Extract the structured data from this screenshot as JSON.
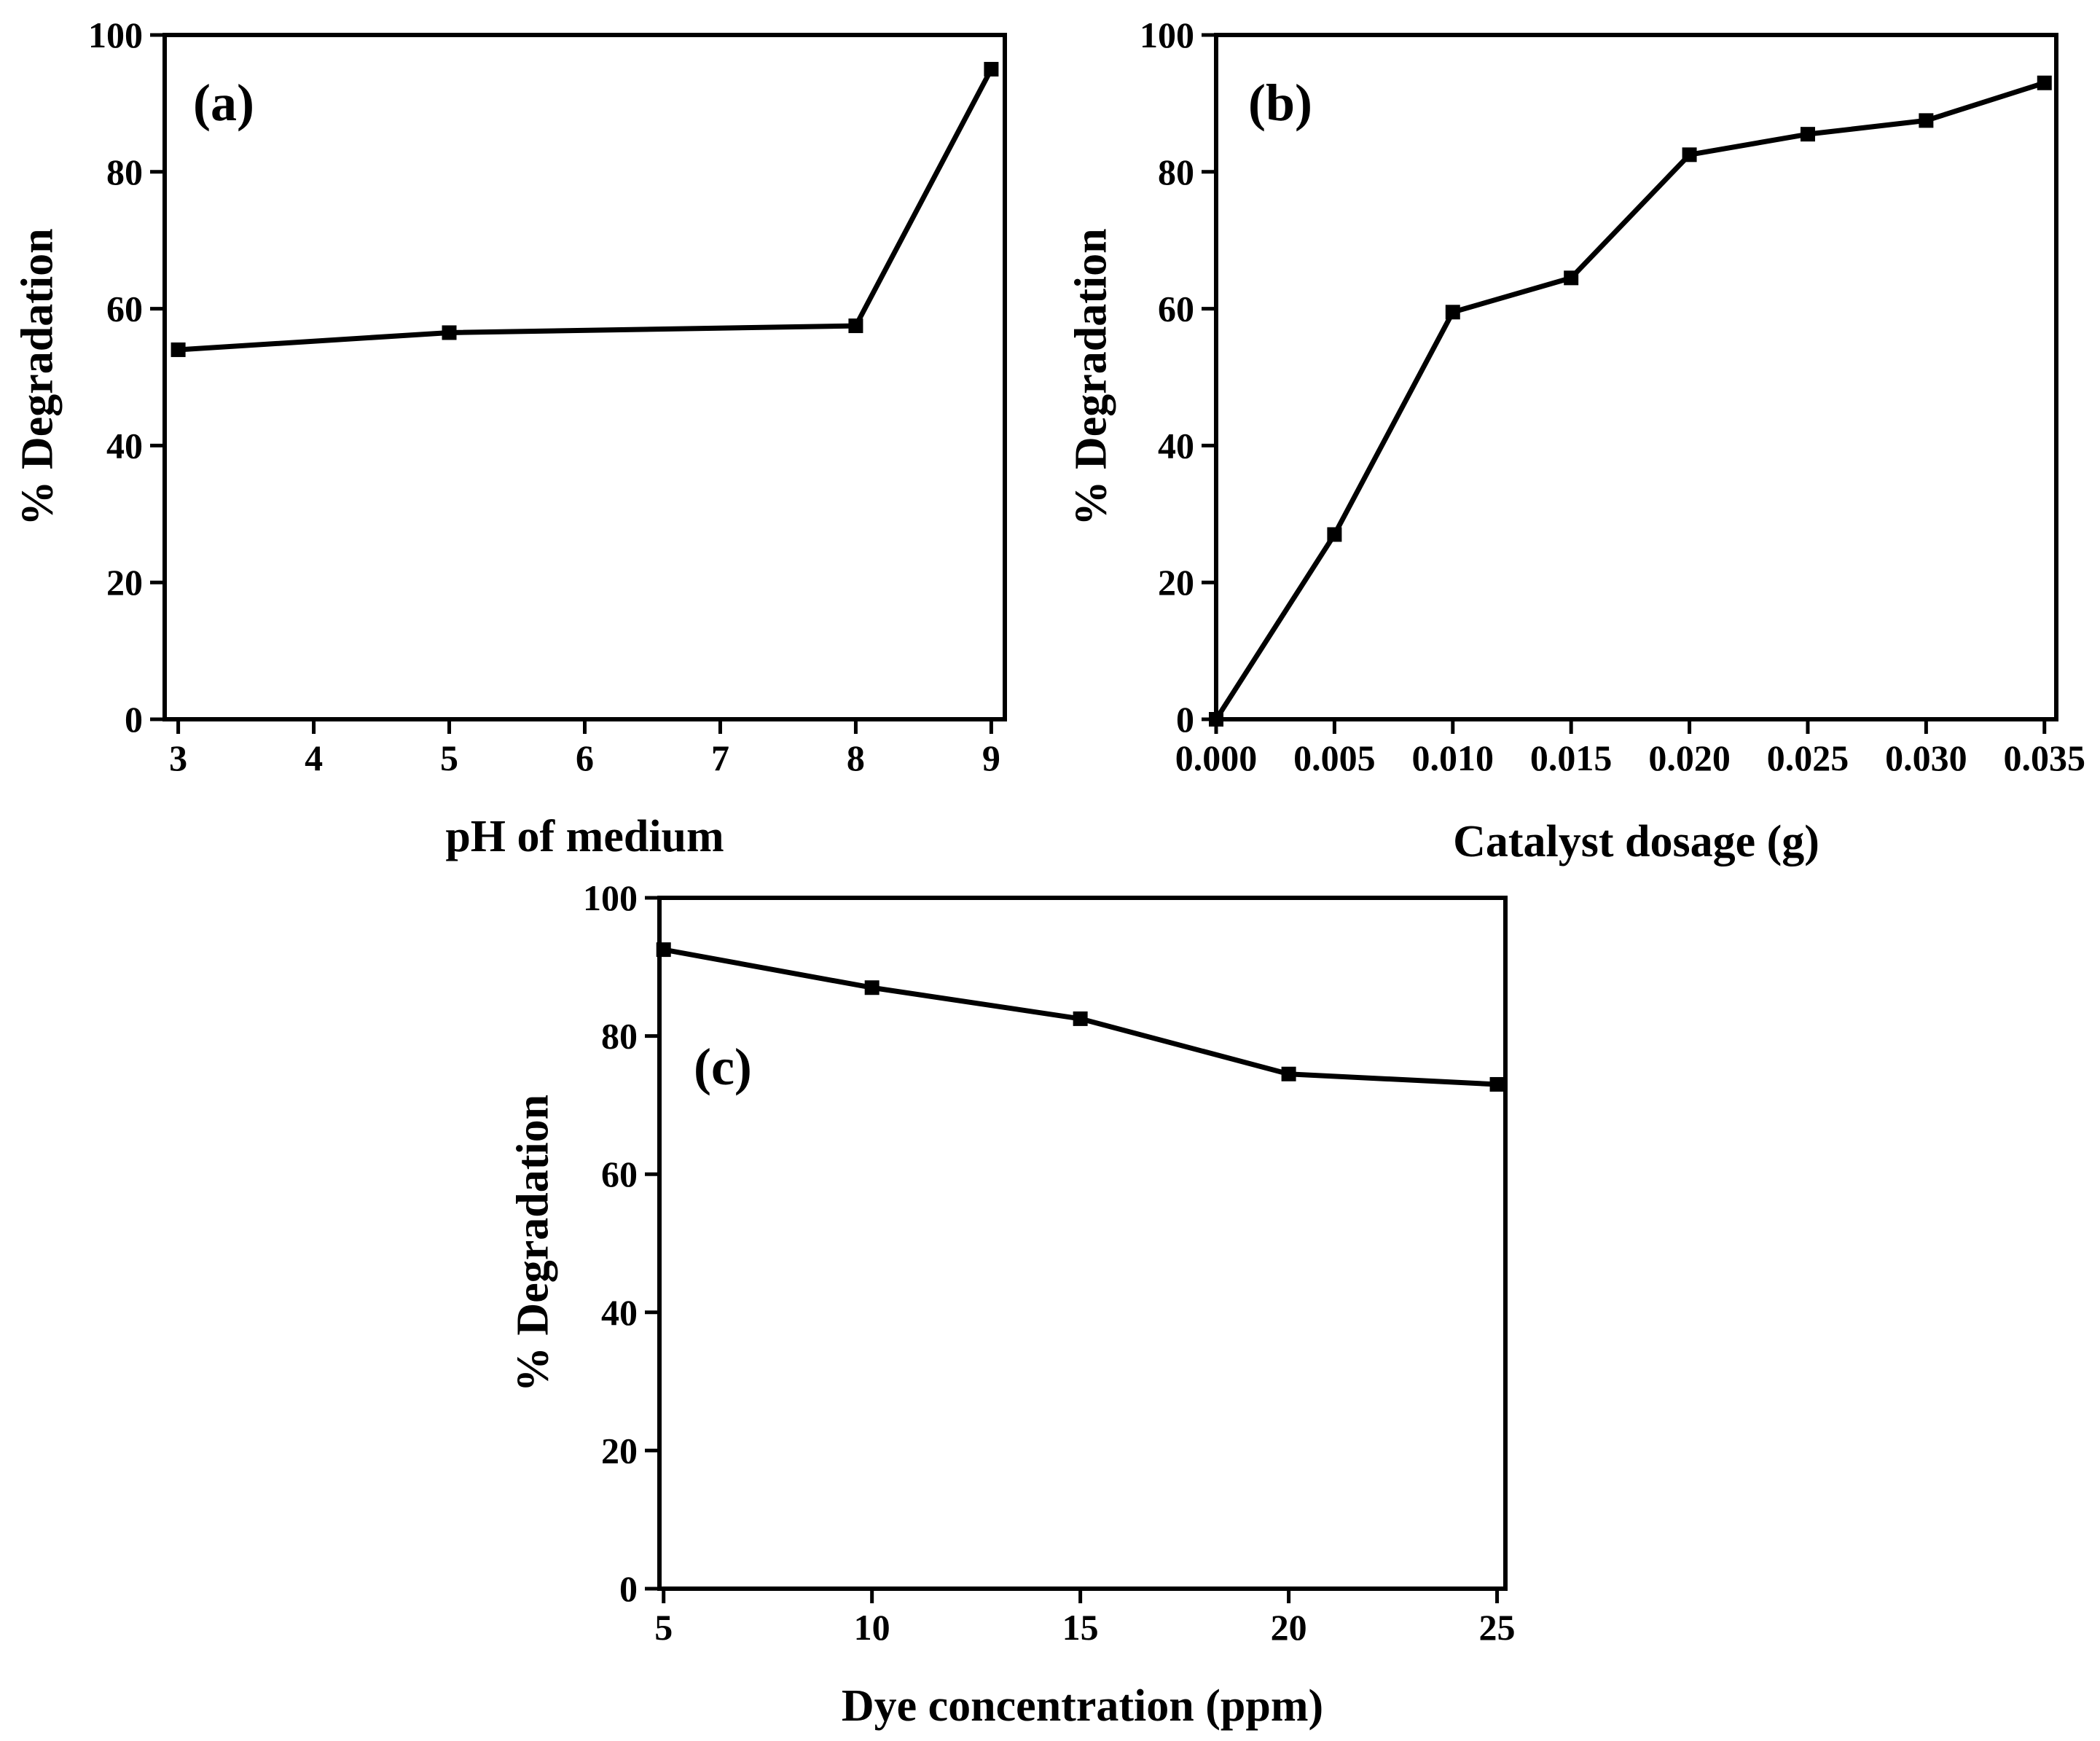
{
  "colors": {
    "line": "#000000",
    "marker": "#000000",
    "background": "#ffffff"
  },
  "chart_data": [
    {
      "id": "a",
      "type": "line",
      "panel_label": "(a)",
      "xlabel": "pH of medium",
      "ylabel": "% Degradation",
      "xlim": [
        2.9,
        9.1
      ],
      "ylim": [
        0,
        100
      ],
      "x_ticks": [
        3,
        4,
        5,
        6,
        7,
        8,
        9
      ],
      "x_tick_labels": [
        "3",
        "4",
        "5",
        "6",
        "7",
        "8",
        "9"
      ],
      "y_ticks": [
        0,
        20,
        40,
        60,
        80,
        100
      ],
      "y_tick_labels": [
        "0",
        "20",
        "40",
        "60",
        "80",
        "100"
      ],
      "series": [
        {
          "name": "pH",
          "x": [
            3,
            5,
            8,
            9
          ],
          "y": [
            54,
            56.5,
            57.5,
            95
          ]
        }
      ]
    },
    {
      "id": "b",
      "type": "line",
      "panel_label": "(b)",
      "xlabel": "Catalyst dosage (g)",
      "ylabel": "% Degradation",
      "xlim": [
        0,
        0.0355
      ],
      "ylim": [
        0,
        100
      ],
      "x_ticks": [
        0,
        0.005,
        0.01,
        0.015,
        0.02,
        0.025,
        0.03,
        0.035
      ],
      "x_tick_labels": [
        "0.000",
        "0.005",
        "0.010",
        "0.015",
        "0.020",
        "0.025",
        "0.030",
        "0.035"
      ],
      "y_ticks": [
        0,
        20,
        40,
        60,
        80,
        100
      ],
      "y_tick_labels": [
        "0",
        "20",
        "40",
        "60",
        "80",
        "100"
      ],
      "series": [
        {
          "name": "dosage",
          "x": [
            0,
            0.005,
            0.01,
            0.015,
            0.02,
            0.025,
            0.03,
            0.035
          ],
          "y": [
            0,
            27,
            59.5,
            64.5,
            82.5,
            85.5,
            87.5,
            93
          ]
        }
      ]
    },
    {
      "id": "c",
      "type": "line",
      "panel_label": "(c)",
      "xlabel": "Dye concentration (ppm)",
      "ylabel": "% Degradation",
      "xlim": [
        4.9,
        25.2
      ],
      "ylim": [
        0,
        100
      ],
      "x_ticks": [
        5,
        10,
        15,
        20,
        25
      ],
      "x_tick_labels": [
        "5",
        "10",
        "15",
        "20",
        "25"
      ],
      "y_ticks": [
        0,
        20,
        40,
        60,
        80,
        100
      ],
      "y_tick_labels": [
        "0",
        "20",
        "40",
        "60",
        "80",
        "100"
      ],
      "series": [
        {
          "name": "concentration",
          "x": [
            5,
            10,
            15,
            20,
            25
          ],
          "y": [
            92.5,
            87,
            82.5,
            74.5,
            73
          ]
        }
      ]
    }
  ]
}
